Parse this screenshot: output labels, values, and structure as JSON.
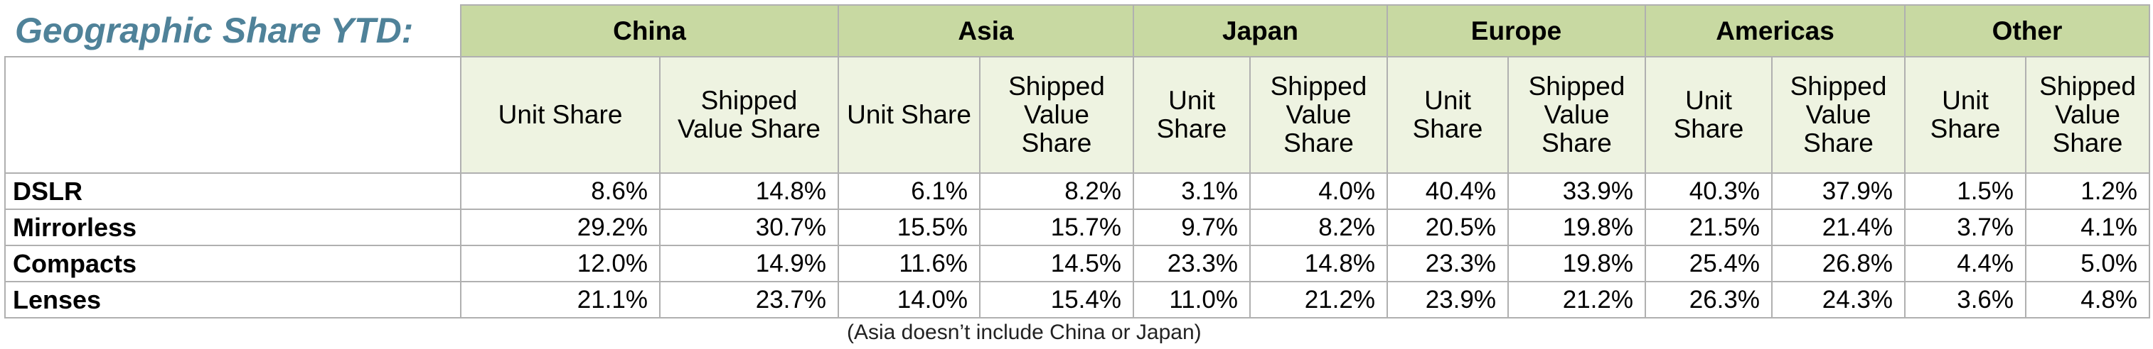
{
  "title": "Geographic Share YTD:",
  "table": {
    "groups": [
      {
        "name": "China",
        "columns": [
          "Unit Share",
          "Shipped Value Share"
        ]
      },
      {
        "name": "Asia",
        "columns": [
          "Unit Share",
          "Shipped Value Share"
        ]
      },
      {
        "name": "Japan",
        "columns": [
          "Unit Share",
          "Shipped Value Share"
        ]
      },
      {
        "name": "Europe",
        "columns": [
          "Unit Share",
          "Shipped Value Share"
        ]
      },
      {
        "name": "Americas",
        "columns": [
          "Unit Share",
          "Shipped Value Share"
        ]
      },
      {
        "name": "Other",
        "columns": [
          "Unit Share",
          "Shipped Value Share"
        ]
      }
    ],
    "rows": [
      {
        "label": "DSLR",
        "cells": [
          "8.6%",
          "14.8%",
          "6.1%",
          "8.2%",
          "3.1%",
          "4.0%",
          "40.4%",
          "33.9%",
          "40.3%",
          "37.9%",
          "1.5%",
          "1.2%"
        ]
      },
      {
        "label": "Mirrorless",
        "cells": [
          "29.2%",
          "30.7%",
          "15.5%",
          "15.7%",
          "9.7%",
          "8.2%",
          "20.5%",
          "19.8%",
          "21.5%",
          "21.4%",
          "3.7%",
          "4.1%"
        ]
      },
      {
        "label": "Compacts",
        "cells": [
          "12.0%",
          "14.9%",
          "11.6%",
          "14.5%",
          "23.3%",
          "14.8%",
          "23.3%",
          "19.8%",
          "25.4%",
          "26.8%",
          "4.4%",
          "5.0%"
        ]
      },
      {
        "label": "Lenses",
        "cells": [
          "21.1%",
          "23.7%",
          "14.0%",
          "15.4%",
          "11.0%",
          "21.2%",
          "23.9%",
          "21.2%",
          "26.3%",
          "24.3%",
          "3.6%",
          "4.8%"
        ]
      }
    ]
  },
  "footnote": "(Asia doesn’t include China or Japan)"
}
